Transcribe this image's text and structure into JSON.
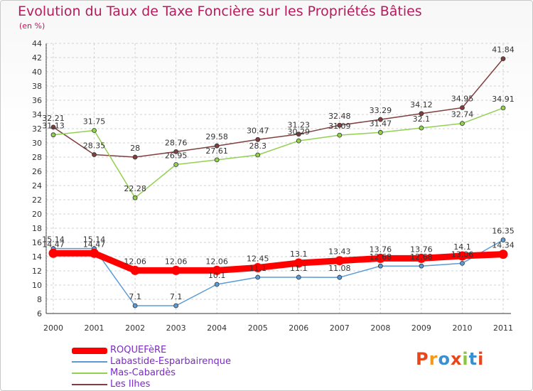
{
  "title": "Evolution du Taux de Taxe Foncière sur les Propriétés Bâties",
  "subtitle": "(en %)",
  "logo": {
    "text": "Proxiti",
    "colors": [
      "#e8471c",
      "#f29a1a",
      "#3a8fd1",
      "#e8471c",
      "#8cc540",
      "#3a8fd1",
      "#e8471c"
    ]
  },
  "chart_data": {
    "type": "line",
    "x": [
      "2000",
      "2001",
      "2002",
      "2003",
      "2004",
      "2005",
      "2006",
      "2007",
      "2008",
      "2009",
      "2010",
      "2011"
    ],
    "ylim": [
      6,
      44
    ],
    "yticks": [
      6,
      8,
      10,
      12,
      14,
      16,
      18,
      20,
      22,
      24,
      26,
      28,
      30,
      32,
      34,
      36,
      38,
      40,
      42,
      44
    ],
    "grid": true,
    "legend_position": "bottom-left",
    "series": [
      {
        "name": "ROQUEFèRE",
        "color": "#ff0000",
        "values": [
          14.47,
          14.47,
          12.06,
          12.06,
          12.06,
          12.45,
          13.1,
          13.43,
          13.76,
          13.76,
          14.1,
          14.34
        ],
        "labels": [
          "14.47",
          "14.47",
          "12.06",
          "12.06",
          "12.06",
          "12.45",
          "13.1",
          "13.43",
          "13.76",
          "13.76",
          "14.1",
          "14.34"
        ]
      },
      {
        "name": "Labastide-Esparbairenque",
        "color": "#5b9bd5",
        "values": [
          15.14,
          15.14,
          7.1,
          7.1,
          10.1,
          11.1,
          11.1,
          11.08,
          12.68,
          12.68,
          13.06,
          16.35
        ],
        "labels": [
          "15.14",
          "15.14",
          "7.1",
          "7.1",
          "10.1",
          "11.1",
          "11.1",
          "11.08",
          "12.68",
          "12.68",
          "13.06",
          "16.35"
        ]
      },
      {
        "name": "Mas-Cabardès",
        "color": "#92d050",
        "values": [
          31.13,
          31.75,
          22.28,
          26.95,
          27.61,
          28.3,
          30.29,
          31.09,
          31.47,
          32.1,
          32.74,
          34.91
        ],
        "labels": [
          "31.13",
          "31.75",
          "22.28",
          "26.95",
          "27.61",
          "28.3",
          "30.29",
          "31.09",
          "31.47",
          "32.1",
          "32.74",
          "34.91"
        ]
      },
      {
        "name": "Les Ilhes",
        "color": "#7f3f3f",
        "values": [
          32.21,
          28.35,
          28,
          28.76,
          29.58,
          30.47,
          31.23,
          32.48,
          33.29,
          34.12,
          34.95,
          41.84
        ],
        "labels": [
          "32.21",
          "28.35",
          "28",
          "28.76",
          "29.58",
          "30.47",
          "31.23",
          "32.48",
          "33.29",
          "34.12",
          "34.95",
          "41.84"
        ]
      }
    ]
  }
}
